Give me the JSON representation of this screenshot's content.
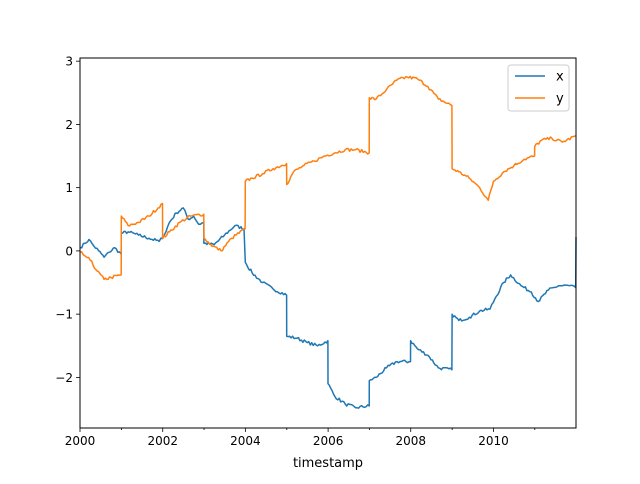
{
  "chart_data": {
    "type": "line",
    "title": "",
    "xlabel": "timestamp",
    "ylabel": "",
    "xlim": [
      "2000-01-01",
      "2011-12-31"
    ],
    "ylim": [
      -2.8,
      3.05
    ],
    "x_ticks": [
      {
        "date": "2000-01-01",
        "label": "2000",
        "major": true
      },
      {
        "date": "2001-01-01",
        "label": "",
        "major": false
      },
      {
        "date": "2002-01-01",
        "label": "2002",
        "major": true
      },
      {
        "date": "2003-01-01",
        "label": "",
        "major": false
      },
      {
        "date": "2004-01-01",
        "label": "2004",
        "major": true
      },
      {
        "date": "2005-01-01",
        "label": "",
        "major": false
      },
      {
        "date": "2006-01-01",
        "label": "2006",
        "major": true
      },
      {
        "date": "2007-01-01",
        "label": "",
        "major": false
      },
      {
        "date": "2008-01-01",
        "label": "2008",
        "major": true
      },
      {
        "date": "2009-01-01",
        "label": "",
        "major": false
      },
      {
        "date": "2010-01-01",
        "label": "2010",
        "major": true
      },
      {
        "date": "2011-01-01",
        "label": "",
        "major": false
      }
    ],
    "y_ticks": [
      {
        "value": 3,
        "label": "3"
      },
      {
        "value": 2,
        "label": "2"
      },
      {
        "value": 1,
        "label": "1"
      },
      {
        "value": 0,
        "label": "0"
      },
      {
        "value": -1,
        "label": "−1"
      },
      {
        "value": -2,
        "label": "−2"
      }
    ],
    "legend": {
      "position": "upper-right",
      "entries": [
        "x",
        "y"
      ]
    },
    "grid": false,
    "series": [
      {
        "name": "x",
        "color": "#1f77b4",
        "points": [
          [
            "2000-01-01",
            0.05
          ],
          [
            "2000-02-15",
            0.12
          ],
          [
            "2000-03-20",
            0.18
          ],
          [
            "2000-05-01",
            0.08
          ],
          [
            "2000-06-15",
            0.0
          ],
          [
            "2000-08-01",
            -0.1
          ],
          [
            "2000-09-15",
            -0.02
          ],
          [
            "2000-11-01",
            0.05
          ],
          [
            "2000-12-30",
            -0.05
          ],
          [
            "2000-12-31",
            0.28
          ],
          [
            "2001-03-01",
            0.3
          ],
          [
            "2001-06-01",
            0.25
          ],
          [
            "2001-09-01",
            0.2
          ],
          [
            "2001-12-01",
            0.15
          ],
          [
            "2002-01-15",
            0.25
          ],
          [
            "2002-03-01",
            0.45
          ],
          [
            "2002-05-01",
            0.6
          ],
          [
            "2002-07-01",
            0.68
          ],
          [
            "2002-08-15",
            0.5
          ],
          [
            "2002-10-01",
            0.55
          ],
          [
            "2002-11-15",
            0.42
          ],
          [
            "2002-12-30",
            0.45
          ],
          [
            "2002-12-31",
            0.12
          ],
          [
            "2003-04-01",
            0.1
          ],
          [
            "2003-07-01",
            0.25
          ],
          [
            "2003-10-01",
            0.4
          ],
          [
            "2003-12-20",
            0.35
          ],
          [
            "2003-12-31",
            -0.18
          ],
          [
            "2004-03-01",
            -0.35
          ],
          [
            "2004-06-01",
            -0.5
          ],
          [
            "2004-09-01",
            -0.6
          ],
          [
            "2004-12-30",
            -0.7
          ],
          [
            "2004-12-31",
            -1.35
          ],
          [
            "2005-04-01",
            -1.38
          ],
          [
            "2005-07-01",
            -1.45
          ],
          [
            "2005-10-01",
            -1.5
          ],
          [
            "2005-12-30",
            -1.42
          ],
          [
            "2005-12-31",
            -2.1
          ],
          [
            "2006-03-01",
            -2.3
          ],
          [
            "2006-06-01",
            -2.42
          ],
          [
            "2006-09-01",
            -2.48
          ],
          [
            "2006-12-30",
            -2.45
          ],
          [
            "2006-12-31",
            -2.05
          ],
          [
            "2007-03-01",
            -2.0
          ],
          [
            "2007-06-01",
            -1.85
          ],
          [
            "2007-09-01",
            -1.75
          ],
          [
            "2007-12-30",
            -1.75
          ],
          [
            "2007-12-31",
            -1.42
          ],
          [
            "2008-03-01",
            -1.55
          ],
          [
            "2008-06-01",
            -1.65
          ],
          [
            "2008-09-01",
            -1.85
          ],
          [
            "2008-12-30",
            -1.88
          ],
          [
            "2008-12-31",
            -1.0
          ],
          [
            "2009-03-01",
            -1.1
          ],
          [
            "2009-06-01",
            -1.05
          ],
          [
            "2009-09-01",
            -0.95
          ],
          [
            "2009-12-01",
            -0.92
          ],
          [
            "2010-01-15",
            -0.75
          ],
          [
            "2010-04-01",
            -0.5
          ],
          [
            "2010-06-01",
            -0.38
          ],
          [
            "2010-09-01",
            -0.55
          ],
          [
            "2010-12-01",
            -0.65
          ],
          [
            "2011-02-01",
            -0.8
          ],
          [
            "2011-05-01",
            -0.62
          ],
          [
            "2011-08-01",
            -0.55
          ],
          [
            "2011-11-01",
            -0.55
          ],
          [
            "2011-12-28",
            -0.58
          ],
          [
            "2011-12-31",
            0.22
          ]
        ]
      },
      {
        "name": "y",
        "color": "#ff7f0e",
        "points": [
          [
            "2000-01-01",
            -0.02
          ],
          [
            "2000-02-15",
            -0.08
          ],
          [
            "2000-04-01",
            -0.15
          ],
          [
            "2000-06-01",
            -0.32
          ],
          [
            "2000-08-01",
            -0.45
          ],
          [
            "2000-10-01",
            -0.42
          ],
          [
            "2000-12-30",
            -0.38
          ],
          [
            "2000-12-31",
            0.55
          ],
          [
            "2001-03-01",
            0.4
          ],
          [
            "2001-06-01",
            0.45
          ],
          [
            "2001-09-01",
            0.55
          ],
          [
            "2001-12-30",
            0.75
          ],
          [
            "2001-12-31",
            0.2
          ],
          [
            "2002-03-01",
            0.3
          ],
          [
            "2002-06-01",
            0.45
          ],
          [
            "2002-09-01",
            0.55
          ],
          [
            "2002-12-30",
            0.58
          ],
          [
            "2002-12-31",
            0.2
          ],
          [
            "2003-03-01",
            0.1
          ],
          [
            "2003-06-01",
            0.0
          ],
          [
            "2003-09-01",
            0.2
          ],
          [
            "2003-12-30",
            0.35
          ],
          [
            "2003-12-31",
            1.1
          ],
          [
            "2004-03-01",
            1.15
          ],
          [
            "2004-06-01",
            1.22
          ],
          [
            "2004-09-01",
            1.3
          ],
          [
            "2004-12-30",
            1.38
          ],
          [
            "2004-12-31",
            1.05
          ],
          [
            "2005-03-01",
            1.25
          ],
          [
            "2005-06-01",
            1.35
          ],
          [
            "2005-09-01",
            1.42
          ],
          [
            "2005-12-01",
            1.5
          ],
          [
            "2006-03-01",
            1.55
          ],
          [
            "2006-06-01",
            1.6
          ],
          [
            "2006-09-01",
            1.6
          ],
          [
            "2006-12-30",
            1.55
          ],
          [
            "2006-12-31",
            2.42
          ],
          [
            "2007-03-01",
            2.4
          ],
          [
            "2007-06-01",
            2.55
          ],
          [
            "2007-09-01",
            2.7
          ],
          [
            "2007-12-01",
            2.75
          ],
          [
            "2008-03-01",
            2.72
          ],
          [
            "2008-06-01",
            2.6
          ],
          [
            "2008-09-01",
            2.4
          ],
          [
            "2008-12-30",
            2.3
          ],
          [
            "2008-12-31",
            1.3
          ],
          [
            "2009-03-01",
            1.25
          ],
          [
            "2009-06-01",
            1.15
          ],
          [
            "2009-09-01",
            1.0
          ],
          [
            "2009-11-15",
            0.8
          ],
          [
            "2010-01-01",
            1.1
          ],
          [
            "2010-04-01",
            1.25
          ],
          [
            "2010-07-01",
            1.35
          ],
          [
            "2010-10-01",
            1.45
          ],
          [
            "2010-12-30",
            1.5
          ],
          [
            "2010-12-31",
            1.65
          ],
          [
            "2011-03-01",
            1.75
          ],
          [
            "2011-06-01",
            1.78
          ],
          [
            "2011-09-01",
            1.72
          ],
          [
            "2011-12-31",
            1.82
          ]
        ]
      }
    ]
  }
}
